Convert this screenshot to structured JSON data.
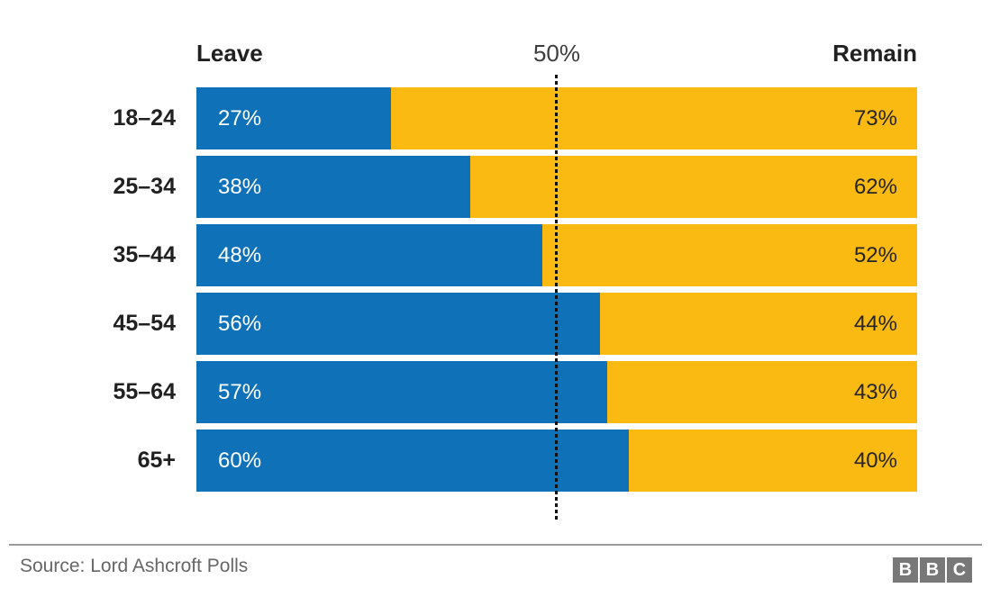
{
  "header": {
    "left_label": "Leave",
    "center_label": "50%",
    "right_label": "Remain"
  },
  "chart_data": {
    "type": "bar",
    "orientation": "horizontal",
    "stacked": true,
    "title": "",
    "categories": [
      "18–24",
      "25–34",
      "35–44",
      "45–54",
      "55–64",
      "65+"
    ],
    "series": [
      {
        "name": "Leave",
        "color": "#0F72B9",
        "values": [
          27,
          38,
          48,
          56,
          57,
          60
        ]
      },
      {
        "name": "Remain",
        "color": "#FBBA12",
        "values": [
          73,
          62,
          52,
          44,
          43,
          40
        ]
      }
    ],
    "value_suffix": "%",
    "value_labels_shown": true,
    "reference_line": {
      "value": 50,
      "label": "50%"
    },
    "xlim": [
      0,
      100
    ],
    "grid": false,
    "legend_position": "top",
    "source": "Source: Lord Ashcroft Polls"
  },
  "footer": {
    "logo_letters": [
      "B",
      "B",
      "C"
    ]
  }
}
